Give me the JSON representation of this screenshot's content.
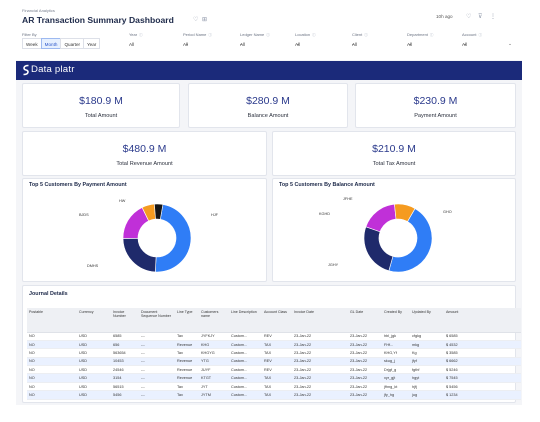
{
  "header": {
    "breadcrumb": "Financial Analytics",
    "title": "AR Transaction Summary Dashboard",
    "refreshed": "10h ago",
    "filter_by": "Filter By",
    "periods": [
      "Week",
      "Month",
      "Quarter",
      "Year"
    ],
    "active_period": "Month",
    "filters": [
      {
        "label": "Year",
        "value": "All"
      },
      {
        "label": "Period Name",
        "value": "All"
      },
      {
        "label": "Ledger Name",
        "value": "All"
      },
      {
        "label": "Location",
        "value": "All"
      },
      {
        "label": "Client",
        "value": "All"
      },
      {
        "label": "Department",
        "value": "All"
      },
      {
        "label": "Account",
        "value": "All"
      }
    ]
  },
  "brand": {
    "name": "Data platr",
    "color": "#1b2a7a"
  },
  "kpis": [
    {
      "value": "$180.9 M",
      "label": "Total Amount"
    },
    {
      "value": "$280.9 M",
      "label": "Balance Amount"
    },
    {
      "value": "$230.9 M",
      "label": "Payment Amount"
    },
    {
      "value": "$480.9 M",
      "label": "Total Revenue Amount"
    },
    {
      "value": "$210.9 M",
      "label": "Total Tax Amount"
    }
  ],
  "charts": {
    "payment": {
      "title": "Top 5 Customers By Payment Amount",
      "labels": [
        "HW",
        "BJDS",
        "HJF",
        "DMHS"
      ]
    },
    "balance": {
      "title": "Top 5 Customers By Balance Amount",
      "labels": [
        "JFHE",
        "KGHD",
        "GHO",
        "JGHY"
      ]
    }
  },
  "chart_data": [
    {
      "type": "pie",
      "title": "Top 5 Customers By Payment Amount",
      "segments": [
        {
          "label": "HJF",
          "value": 48,
          "color": "#2f7df6"
        },
        {
          "label": "DMHS",
          "value": 24,
          "color": "#1f2a6b"
        },
        {
          "label": "BJDS",
          "value": 18,
          "color": "#c030d8"
        },
        {
          "label": "",
          "value": 6,
          "color": "#f59b20"
        },
        {
          "label": "HW",
          "value": 4,
          "color": "#151515"
        }
      ]
    },
    {
      "type": "pie",
      "title": "Top 5 Customers By Balance Amount",
      "segments": [
        {
          "label": "GHO",
          "value": 46,
          "color": "#2f7df6"
        },
        {
          "label": "JGHY",
          "value": 26,
          "color": "#1f2a6b"
        },
        {
          "label": "KGHD",
          "value": 18,
          "color": "#c030d8"
        },
        {
          "label": "JFHE",
          "value": 10,
          "color": "#f59b20"
        }
      ]
    }
  ],
  "journal": {
    "title": "Journal Details",
    "columns": [
      "Postable",
      "Currency",
      "Invoice Number",
      "Document Sequence Number",
      "Line Type",
      "Customers name",
      "Line Description",
      "Account Class",
      "Invoice Date",
      "GL Date",
      "Created By",
      "Updated By",
      "Amount"
    ],
    "rows": [
      [
        "NO",
        "USD",
        "6585",
        "---",
        "Tax",
        "JYFKJY",
        "Custom...",
        "REV",
        "23-Jan-22",
        "23-Jan-22",
        "hbl_jgk",
        "cfgkg",
        "$ 6585"
      ],
      [
        "NO",
        "USD",
        "656",
        "---",
        "Revenue",
        "KHG",
        "Custom...",
        "TAX",
        "23-Jan-22",
        "23-Jan-22",
        "FHf...",
        "mkg",
        "$ 4532"
      ],
      [
        "NO",
        "USD",
        "563654",
        "---",
        "Tax",
        "KHGYG",
        "Custom...",
        "TAX",
        "23-Jan-22",
        "23-Jan-22",
        "KHG,Yf",
        "Kg",
        "$ 3585"
      ],
      [
        "NO",
        "USD",
        "10453",
        "---",
        "Revenue",
        "YTG",
        "Custom...",
        "REV",
        "23-Jan-22",
        "23-Jan-22",
        "skug_j",
        "jfyf",
        "$ 6662"
      ],
      [
        "NO",
        "USD",
        "24546",
        "---",
        "Revenue",
        "JUYF",
        "Custom...",
        "REV",
        "23-Jan-22",
        "23-Jan-22",
        "Drjgf_g",
        "fgthf",
        "$ 5246"
      ],
      [
        "NO",
        "USD",
        "3154",
        "---",
        "Revenue",
        "KTGT",
        "Custom...",
        "TAX",
        "23-Jan-22",
        "23-Jan-22",
        "xyr_gjt",
        "hgyt",
        "$ 7545"
      ],
      [
        "NO",
        "USD",
        "56515",
        "---",
        "Tax",
        "JYT",
        "Custom...",
        "TAX",
        "23-Jan-22",
        "23-Jan-22",
        "jfhng_kt",
        "hjfj",
        "$ 5456"
      ],
      [
        "NO",
        "USD",
        "5456",
        "---",
        "Tax",
        "JYTM",
        "Custom...",
        "TAX",
        "23-Jan-22",
        "23-Jan-22",
        "jfy_hg",
        "jug",
        "$ 1234"
      ]
    ]
  }
}
